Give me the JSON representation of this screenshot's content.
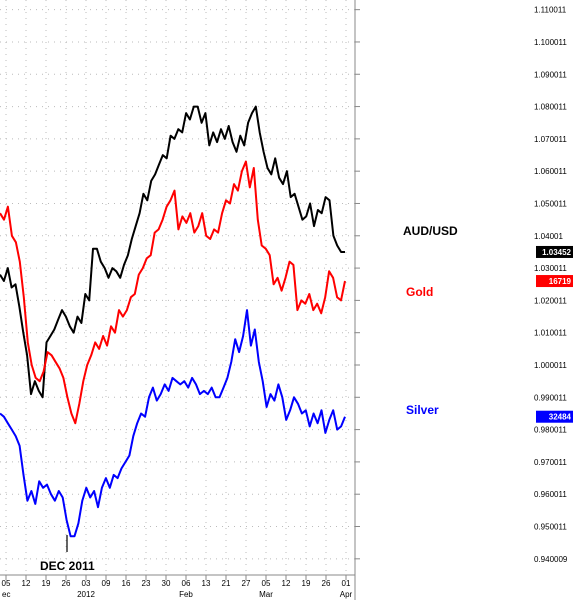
{
  "chart_data": {
    "type": "line",
    "y_axis_position": "right",
    "ylim": [
      0.935,
      1.113
    ],
    "yticks": [
      "1.110011",
      "1.100011",
      "1.090011",
      "1.080011",
      "1.070011",
      "1.060011",
      "1.050011",
      "1.04001",
      "1.030011",
      "1.020011",
      "1.010011",
      "1.000011",
      "0.990011",
      "0.980011",
      "0.970011",
      "0.960011",
      "0.950011",
      "0.940009"
    ],
    "x_day_labels": [
      "05",
      "12",
      "19",
      "26",
      "03",
      "09",
      "16",
      "23",
      "30",
      "06",
      "13",
      "21",
      "27",
      "05",
      "12",
      "19",
      "26",
      "01"
    ],
    "x_month_labels": [
      "ec",
      "2012",
      "Feb",
      "Mar",
      "Apr"
    ],
    "grid": "dotted",
    "annotation": "DEC 2011",
    "series": [
      {
        "name": "AUD/USD",
        "color": "#000000",
        "current_value": "1.03452",
        "values": [
          1.028,
          1.026,
          1.03,
          1.024,
          1.025,
          1.018,
          1.01,
          1.003,
          0.991,
          0.995,
          0.992,
          0.99,
          1.007,
          1.009,
          1.011,
          1.014,
          1.017,
          1.015,
          1.012,
          1.01,
          1.015,
          1.013,
          1.022,
          1.02,
          1.036,
          1.036,
          1.032,
          1.03,
          1.027,
          1.03,
          1.029,
          1.027,
          1.031,
          1.034,
          1.039,
          1.043,
          1.047,
          1.053,
          1.051,
          1.057,
          1.059,
          1.062,
          1.065,
          1.064,
          1.071,
          1.07,
          1.073,
          1.072,
          1.078,
          1.076,
          1.08,
          1.08,
          1.075,
          1.078,
          1.068,
          1.072,
          1.069,
          1.073,
          1.07,
          1.074,
          1.069,
          1.066,
          1.071,
          1.068,
          1.075,
          1.078,
          1.08,
          1.072,
          1.066,
          1.061,
          1.059,
          1.064,
          1.058,
          1.056,
          1.06,
          1.052,
          1.053,
          1.049,
          1.045,
          1.046,
          1.05,
          1.043,
          1.048,
          1.047,
          1.052,
          1.051,
          1.04,
          1.037,
          1.035,
          1.035
        ]
      },
      {
        "name": "Gold",
        "color": "#ff0000",
        "current_value": "16719",
        "values": [
          1.047,
          1.045,
          1.049,
          1.04,
          1.038,
          1.032,
          1.021,
          1.007,
          1.0,
          0.996,
          0.995,
          0.998,
          1.004,
          1.003,
          1.001,
          0.999,
          0.996,
          0.99,
          0.985,
          0.982,
          0.988,
          0.995,
          1.0,
          1.003,
          1.007,
          1.005,
          1.009,
          1.006,
          1.012,
          1.01,
          1.017,
          1.015,
          1.017,
          1.021,
          1.022,
          1.028,
          1.03,
          1.033,
          1.034,
          1.041,
          1.042,
          1.045,
          1.049,
          1.051,
          1.054,
          1.042,
          1.046,
          1.044,
          1.047,
          1.041,
          1.043,
          1.047,
          1.04,
          1.039,
          1.042,
          1.041,
          1.047,
          1.051,
          1.05,
          1.056,
          1.054,
          1.06,
          1.063,
          1.055,
          1.061,
          1.045,
          1.037,
          1.036,
          1.034,
          1.025,
          1.027,
          1.023,
          1.027,
          1.032,
          1.031,
          1.017,
          1.02,
          1.019,
          1.022,
          1.017,
          1.019,
          1.016,
          1.021,
          1.029,
          1.027,
          1.021,
          1.02,
          1.026
        ]
      },
      {
        "name": "Silver",
        "color": "#0000ff",
        "current_value": "32484",
        "values": [
          0.985,
          0.984,
          0.982,
          0.98,
          0.978,
          0.975,
          0.966,
          0.958,
          0.961,
          0.957,
          0.964,
          0.962,
          0.963,
          0.96,
          0.958,
          0.961,
          0.959,
          0.952,
          0.947,
          0.947,
          0.951,
          0.958,
          0.962,
          0.959,
          0.961,
          0.956,
          0.962,
          0.965,
          0.962,
          0.966,
          0.965,
          0.968,
          0.97,
          0.972,
          0.978,
          0.982,
          0.985,
          0.984,
          0.99,
          0.993,
          0.989,
          0.991,
          0.994,
          0.992,
          0.996,
          0.995,
          0.994,
          0.995,
          0.993,
          0.996,
          0.994,
          0.991,
          0.992,
          0.991,
          0.993,
          0.99,
          0.99,
          0.993,
          0.996,
          1.001,
          1.008,
          1.004,
          1.009,
          1.017,
          1.006,
          1.011,
          1.001,
          0.995,
          0.987,
          0.991,
          0.989,
          0.994,
          0.99,
          0.983,
          0.986,
          0.99,
          0.988,
          0.985,
          0.986,
          0.981,
          0.985,
          0.982,
          0.986,
          0.979,
          0.983,
          0.986,
          0.98,
          0.981,
          0.984
        ]
      }
    ]
  }
}
